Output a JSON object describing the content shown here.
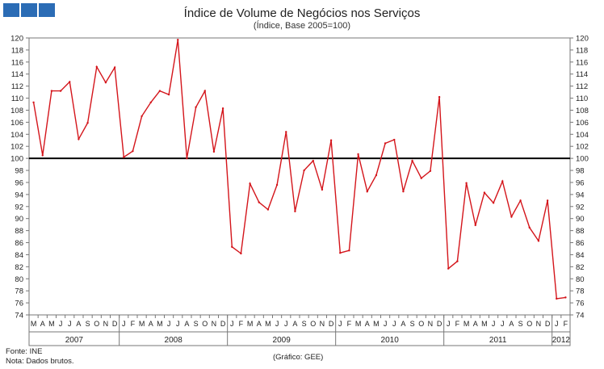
{
  "header": {
    "title": "Índice de Volume de Negócios nos Serviços",
    "subtitle": "(Índice, Base 2005=100)"
  },
  "footer": {
    "source": "Fonte: INE",
    "note": "Nota: Dados brutos.",
    "credit": "(Gráfico: GEE)"
  },
  "colors": {
    "series": "#d4151b",
    "reference": "#000000",
    "logo": "#2b6cb5"
  },
  "chart_data": {
    "type": "line",
    "title": "Índice de Volume de Negócios nos Serviços",
    "subtitle": "(Índice, Base 2005=100)",
    "ylim": [
      74,
      120
    ],
    "ytick_step": 2,
    "right_axis": true,
    "reference_line": 100,
    "grid": false,
    "month_labels": [
      "M",
      "A",
      "M",
      "J",
      "J",
      "A",
      "S",
      "O",
      "N",
      "D",
      "J",
      "F",
      "M",
      "A",
      "M",
      "J",
      "J",
      "A",
      "S",
      "O",
      "N",
      "D",
      "J",
      "F",
      "M",
      "A",
      "M",
      "J",
      "J",
      "A",
      "S",
      "O",
      "N",
      "D",
      "J",
      "F",
      "M",
      "A",
      "M",
      "J",
      "J",
      "A",
      "S",
      "O",
      "N",
      "D",
      "J",
      "F",
      "M",
      "A",
      "M",
      "J",
      "J",
      "A",
      "S",
      "O",
      "N",
      "D",
      "J",
      "F"
    ],
    "years": [
      {
        "label": "2007",
        "start": 0,
        "end": 10
      },
      {
        "label": "2008",
        "start": 10,
        "end": 22
      },
      {
        "label": "2009",
        "start": 22,
        "end": 34
      },
      {
        "label": "2010",
        "start": 34,
        "end": 46
      },
      {
        "label": "2011",
        "start": 46,
        "end": 58
      },
      {
        "label": "2012",
        "start": 58,
        "end": 60
      }
    ],
    "values": [
      109.3,
      100.5,
      111.2,
      111.2,
      112.7,
      103.2,
      105.9,
      115.2,
      112.6,
      115.1,
      100.2,
      101.2,
      107.0,
      109.3,
      111.2,
      110.6,
      119.7,
      100.0,
      108.5,
      111.2,
      101.1,
      108.3,
      85.3,
      84.2,
      95.8,
      92.7,
      91.5,
      95.6,
      104.4,
      91.2,
      98.0,
      99.6,
      94.8,
      103.0,
      84.3,
      84.7,
      100.7,
      94.5,
      97.2,
      102.5,
      103.1,
      94.5,
      99.6,
      96.7,
      97.9,
      110.2,
      81.7,
      82.9,
      95.9,
      88.9,
      94.3,
      92.6,
      96.2,
      90.3,
      93.0,
      88.5,
      86.3,
      93.0,
      76.7,
      76.9
    ]
  }
}
